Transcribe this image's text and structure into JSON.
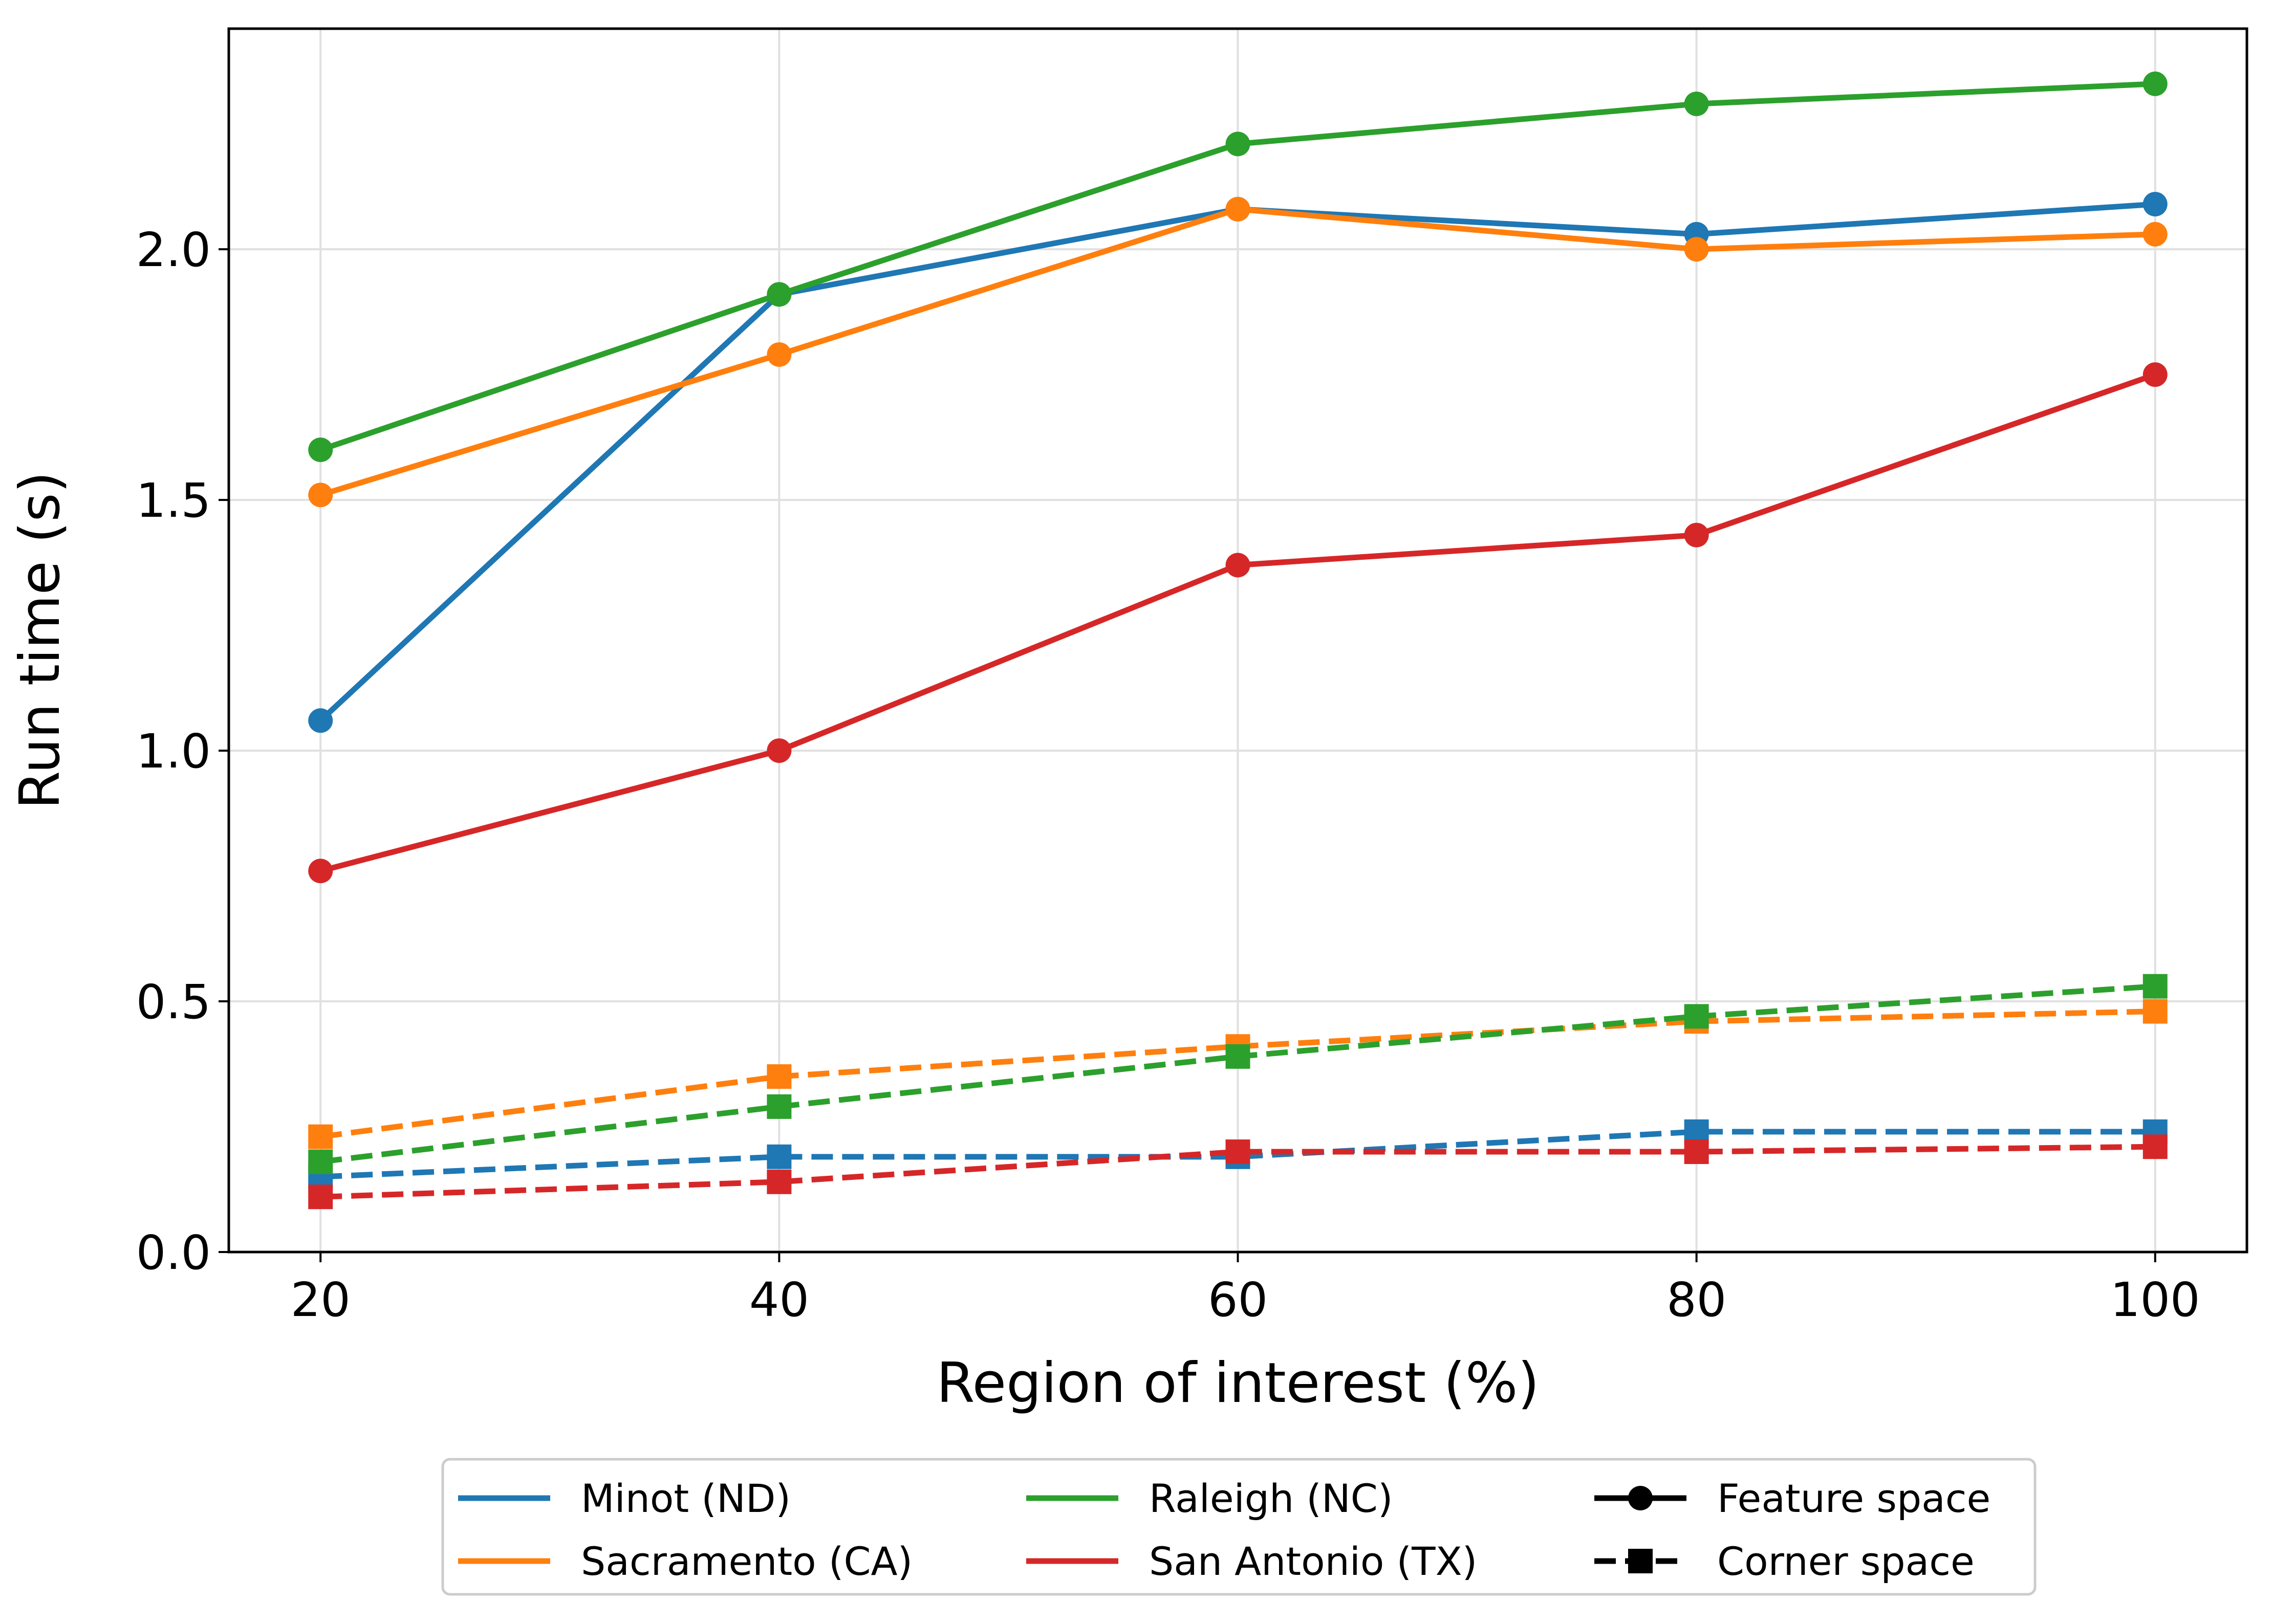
{
  "chart_data": {
    "type": "line",
    "title": "",
    "xlabel": "Region of interest (%)",
    "ylabel": "Run time (s)",
    "x": [
      20,
      40,
      60,
      80,
      100
    ],
    "xticks": [
      20,
      40,
      60,
      80,
      100
    ],
    "xtick_labels": [
      "20",
      "40",
      "60",
      "80",
      "100"
    ],
    "yticks": [
      0.0,
      0.5,
      1.0,
      1.5,
      2.0
    ],
    "ytick_labels": [
      "0.0",
      "0.5",
      "1.0",
      "1.5",
      "2.0"
    ],
    "xlim": [
      16,
      104
    ],
    "ylim": [
      0.0,
      2.44
    ],
    "grid": true,
    "legend_position": "bottom-center",
    "colors": {
      "minot": "#1f77b4",
      "sacramento": "#ff7f0e",
      "raleigh": "#2ca02c",
      "san_antonio": "#d62728",
      "style": "#000000"
    },
    "series": [
      {
        "name": "Minot (ND) - Feature space",
        "city": "minot",
        "space": "feature",
        "values": [
          1.06,
          1.91,
          2.08,
          2.03,
          2.09
        ]
      },
      {
        "name": "Sacramento (CA) - Feature space",
        "city": "sacramento",
        "space": "feature",
        "values": [
          1.51,
          1.79,
          2.08,
          2.0,
          2.03
        ]
      },
      {
        "name": "Raleigh (NC) - Feature space",
        "city": "raleigh",
        "space": "feature",
        "values": [
          1.6,
          1.91,
          2.21,
          2.29,
          2.33
        ]
      },
      {
        "name": "San Antonio (TX) - Feature space",
        "city": "san_antonio",
        "space": "feature",
        "values": [
          0.76,
          1.0,
          1.37,
          1.43,
          1.75
        ]
      },
      {
        "name": "Minot (ND) - Corner space",
        "city": "minot",
        "space": "corner",
        "values": [
          0.15,
          0.19,
          0.19,
          0.24,
          0.24
        ]
      },
      {
        "name": "Sacramento (CA) - Corner space",
        "city": "sacramento",
        "space": "corner",
        "values": [
          0.23,
          0.35,
          0.41,
          0.46,
          0.48
        ]
      },
      {
        "name": "Raleigh (NC) - Corner space",
        "city": "raleigh",
        "space": "corner",
        "values": [
          0.18,
          0.29,
          0.39,
          0.47,
          0.53
        ]
      },
      {
        "name": "San Antonio (TX) - Corner space",
        "city": "san_antonio",
        "space": "corner",
        "values": [
          0.11,
          0.14,
          0.2,
          0.2,
          0.21
        ]
      }
    ],
    "legend": {
      "entries": [
        {
          "label": "Minot (ND)",
          "kind": "color",
          "key": "minot"
        },
        {
          "label": "Sacramento (CA)",
          "kind": "color",
          "key": "sacramento"
        },
        {
          "label": "Raleigh (NC)",
          "kind": "color",
          "key": "raleigh"
        },
        {
          "label": "San Antonio (TX)",
          "kind": "color",
          "key": "san_antonio"
        },
        {
          "label": "Feature space",
          "kind": "style",
          "key": "feature"
        },
        {
          "label": "Corner space",
          "kind": "style",
          "key": "corner"
        }
      ]
    }
  }
}
